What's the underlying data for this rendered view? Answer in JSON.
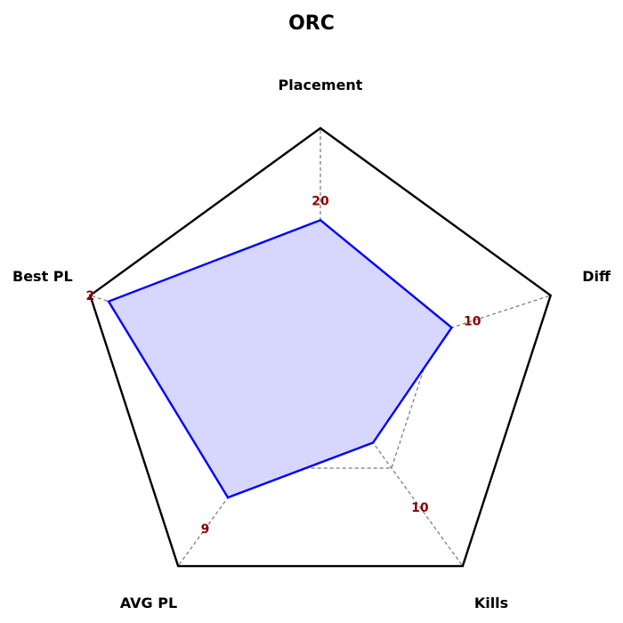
{
  "chart_data": {
    "type": "radar",
    "title": "ORC",
    "axes": [
      "Placement",
      "Diff",
      "Kills",
      "AVG PL",
      "Best PL"
    ],
    "values": [
      0.62,
      0.57,
      0.37,
      0.65,
      0.92
    ],
    "value_labels": [
      "20",
      "10",
      "10",
      "9",
      "2"
    ],
    "value_label_positions": [
      0.7,
      0.66,
      0.7,
      0.81,
      1.0
    ],
    "grid_levels": [
      0.5
    ],
    "colors": {
      "series_line": "#0000ff",
      "series_fill": "#d6d6ff",
      "frame": "#000000",
      "grid": "#777777",
      "value_label": "#8b0000"
    }
  }
}
